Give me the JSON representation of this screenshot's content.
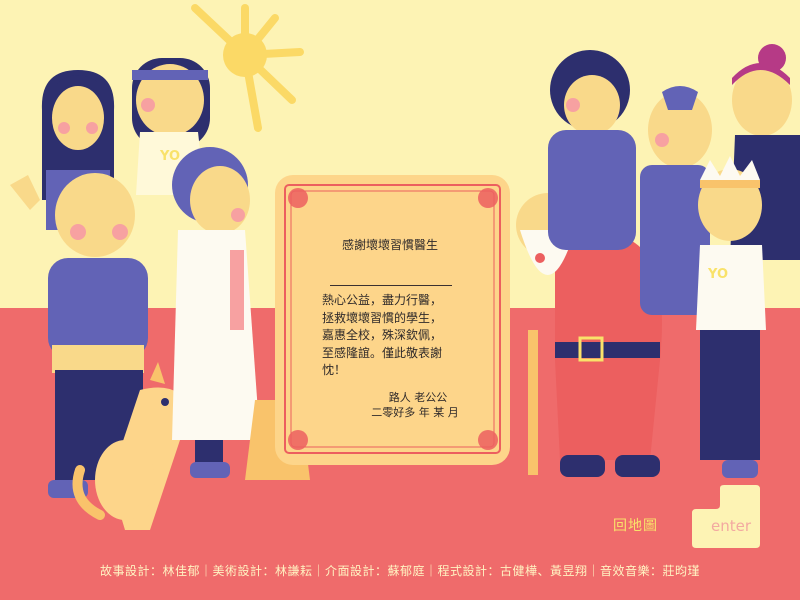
{
  "certificate": {
    "title": "感謝壞壞習慣醫生",
    "body": "熱心公益，盡力行醫，拯救壞壞習慣的學生，嘉惠全校，殊深欽佩，至感隆誼。僅此敬表謝忱！",
    "signature": "路人 老公公",
    "date": "二零好多 年 某 月"
  },
  "shirt_texts": {
    "left_shirt": "YO",
    "right_shirt": "YO"
  },
  "navigation": {
    "back_to_map": "回地圖",
    "enter_key": "enter"
  },
  "credits": "故事設計：林佳郁｜美術設計：林謙耘｜介面設計：蘇郁庭｜程式設計：古健樺、黃昱翔｜音效音樂：莊昀瑾",
  "icons": [
    "sun-icon",
    "enter-key-icon"
  ],
  "colors": {
    "sky": "#fdf3b4",
    "floor": "#ef6b6b",
    "navy": "#2d2f6e",
    "purple": "#6263b6",
    "skin": "#f9d98a",
    "certificate": "#fdd58a",
    "accent_yellow": "#f9e26a"
  }
}
